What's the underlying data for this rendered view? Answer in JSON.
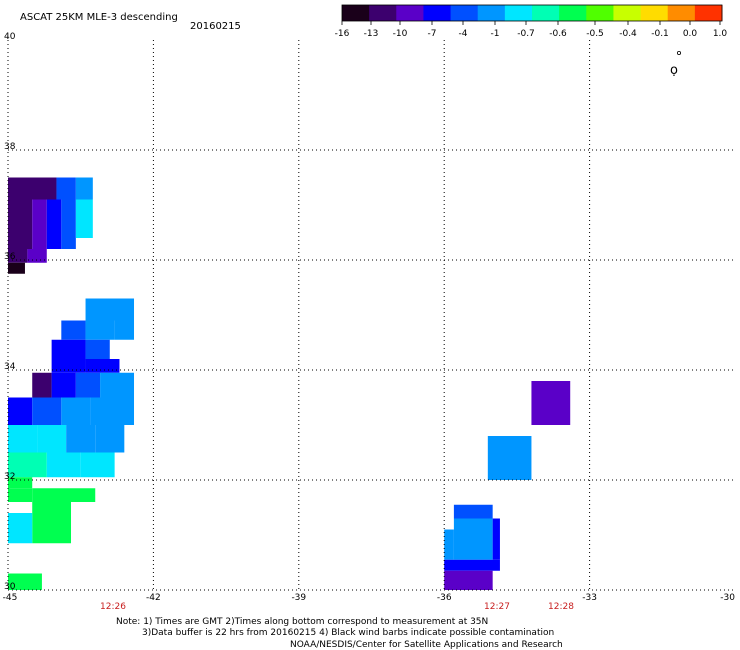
{
  "header": {
    "title": "ASCAT 25KM MLE-3 descending",
    "date": "20160215"
  },
  "colorbar": {
    "colors": [
      "#1a001a",
      "#3c006e",
      "#5a00c8",
      "#0000ff",
      "#0050ff",
      "#0096ff",
      "#00e6ff",
      "#00ffb4",
      "#00ff50",
      "#50ff00",
      "#c8ff00",
      "#ffdc00",
      "#ff8c00",
      "#ff3200"
    ],
    "tick_labels": [
      "-16",
      "-13",
      "-10",
      "-7",
      "-4",
      "-1",
      "-0.7",
      "-0.6",
      "-0.5",
      "-0.4",
      "-0.1",
      "0.0",
      "1.0"
    ]
  },
  "axes": {
    "lon_labels": [
      "-45",
      "-42",
      "-39",
      "-36",
      "-33",
      "-30"
    ],
    "lon_values": [
      -45,
      -42,
      -39,
      -36,
      -33,
      -30
    ],
    "lat_labels": [
      "40",
      "38",
      "36",
      "34",
      "32",
      "30"
    ],
    "lat_values": [
      40,
      38,
      36,
      34,
      32,
      30
    ],
    "lon_range": [
      -45,
      -30
    ],
    "lat_range": [
      30,
      40
    ],
    "grid": "dotted"
  },
  "pass_times": [
    "12:26",
    "12:27",
    "12:28"
  ],
  "wind_barb_symbol": "ọ",
  "notes": {
    "line1": "Note: 1) Times are GMT 2)Times along bottom correspond to measurement at 35N",
    "line2": "3)Data buffer is 22 hrs from 20160215 4) Black wind barbs indicate possible contamination",
    "line3": "NOAA/NESDIS/Center for Satellite Applications and Research"
  },
  "swath_cells": [
    {
      "lon0": -45.0,
      "lon1": -44.35,
      "lat0": 37.1,
      "lat1": 37.5,
      "c": "#3c006e"
    },
    {
      "lon0": -44.35,
      "lon1": -44.0,
      "lat0": 37.1,
      "lat1": 37.5,
      "c": "#3c006e"
    },
    {
      "lon0": -44.0,
      "lon1": -43.6,
      "lat0": 37.1,
      "lat1": 37.5,
      "c": "#0050ff"
    },
    {
      "lon0": -43.6,
      "lon1": -43.25,
      "lat0": 37.1,
      "lat1": 37.5,
      "c": "#0096ff"
    },
    {
      "lon0": -45.0,
      "lon1": -44.5,
      "lat0": 36.8,
      "lat1": 37.1,
      "c": "#3c006e"
    },
    {
      "lon0": -44.5,
      "lon1": -44.2,
      "lat0": 36.8,
      "lat1": 37.1,
      "c": "#5a00c8"
    },
    {
      "lon0": -44.2,
      "lon1": -43.9,
      "lat0": 36.8,
      "lat1": 37.1,
      "c": "#0000ff"
    },
    {
      "lon0": -43.9,
      "lon1": -43.6,
      "lat0": 36.8,
      "lat1": 37.1,
      "c": "#0050ff"
    },
    {
      "lon0": -43.6,
      "lon1": -43.25,
      "lat0": 36.8,
      "lat1": 37.1,
      "c": "#00e6ff"
    },
    {
      "lon0": -45.0,
      "lon1": -44.5,
      "lat0": 36.4,
      "lat1": 36.8,
      "c": "#3c006e"
    },
    {
      "lon0": -44.5,
      "lon1": -44.2,
      "lat0": 36.4,
      "lat1": 36.8,
      "c": "#5a00c8"
    },
    {
      "lon0": -44.2,
      "lon1": -43.9,
      "lat0": 36.4,
      "lat1": 36.8,
      "c": "#0000ff"
    },
    {
      "lon0": -43.9,
      "lon1": -43.6,
      "lat0": 36.4,
      "lat1": 36.8,
      "c": "#0050ff"
    },
    {
      "lon0": -43.6,
      "lon1": -43.25,
      "lat0": 36.4,
      "lat1": 36.8,
      "c": "#00e6ff"
    },
    {
      "lon0": -45.0,
      "lon1": -44.5,
      "lat0": 36.2,
      "lat1": 36.4,
      "c": "#3c006e"
    },
    {
      "lon0": -44.5,
      "lon1": -44.2,
      "lat0": 36.2,
      "lat1": 36.4,
      "c": "#5a00c8"
    },
    {
      "lon0": -44.2,
      "lon1": -43.9,
      "lat0": 36.2,
      "lat1": 36.4,
      "c": "#0000ff"
    },
    {
      "lon0": -43.9,
      "lon1": -43.6,
      "lat0": 36.2,
      "lat1": 36.4,
      "c": "#0050ff"
    },
    {
      "lon0": -45.0,
      "lon1": -44.6,
      "lat0": 35.95,
      "lat1": 36.2,
      "c": "#3c006e"
    },
    {
      "lon0": -44.6,
      "lon1": -44.2,
      "lat0": 35.95,
      "lat1": 36.2,
      "c": "#5a00c8"
    },
    {
      "lon0": -45.0,
      "lon1": -44.65,
      "lat0": 35.75,
      "lat1": 35.95,
      "c": "#1a001a"
    },
    {
      "lon0": -43.4,
      "lon1": -42.4,
      "lat0": 34.9,
      "lat1": 35.3,
      "c": "#0096ff"
    },
    {
      "lon0": -43.9,
      "lon1": -43.4,
      "lat0": 34.55,
      "lat1": 34.9,
      "c": "#0050ff"
    },
    {
      "lon0": -43.4,
      "lon1": -42.8,
      "lat0": 34.55,
      "lat1": 34.9,
      "c": "#0096ff"
    },
    {
      "lon0": -42.8,
      "lon1": -42.4,
      "lat0": 34.55,
      "lat1": 34.9,
      "c": "#0096ff"
    },
    {
      "lon0": -44.1,
      "lon1": -43.4,
      "lat0": 34.2,
      "lat1": 34.55,
      "c": "#0000ff"
    },
    {
      "lon0": -43.4,
      "lon1": -42.9,
      "lat0": 34.2,
      "lat1": 34.55,
      "c": "#0050ff"
    },
    {
      "lon0": -44.1,
      "lon1": -43.4,
      "lat0": 33.95,
      "lat1": 34.2,
      "c": "#0000ff"
    },
    {
      "lon0": -43.4,
      "lon1": -42.7,
      "lat0": 33.95,
      "lat1": 34.2,
      "c": "#0000ff"
    },
    {
      "lon0": -44.5,
      "lon1": -44.1,
      "lat0": 33.5,
      "lat1": 33.95,
      "c": "#3c006e"
    },
    {
      "lon0": -44.1,
      "lon1": -43.6,
      "lat0": 33.5,
      "lat1": 33.95,
      "c": "#0000ff"
    },
    {
      "lon0": -43.6,
      "lon1": -43.1,
      "lat0": 33.5,
      "lat1": 33.95,
      "c": "#0050ff"
    },
    {
      "lon0": -43.1,
      "lon1": -42.4,
      "lat0": 33.5,
      "lat1": 33.95,
      "c": "#0096ff"
    },
    {
      "lon0": -45.0,
      "lon1": -44.5,
      "lat0": 33.0,
      "lat1": 33.5,
      "c": "#0000ff"
    },
    {
      "lon0": -44.5,
      "lon1": -43.9,
      "lat0": 33.0,
      "lat1": 33.5,
      "c": "#0050ff"
    },
    {
      "lon0": -43.9,
      "lon1": -43.3,
      "lat0": 33.0,
      "lat1": 33.5,
      "c": "#0096ff"
    },
    {
      "lon0": -43.3,
      "lon1": -42.4,
      "lat0": 33.0,
      "lat1": 33.5,
      "c": "#0096ff"
    },
    {
      "lon0": -45.0,
      "lon1": -44.4,
      "lat0": 32.5,
      "lat1": 33.0,
      "c": "#00e6ff"
    },
    {
      "lon0": -44.4,
      "lon1": -43.8,
      "lat0": 32.5,
      "lat1": 33.0,
      "c": "#00e6ff"
    },
    {
      "lon0": -43.8,
      "lon1": -43.2,
      "lat0": 32.5,
      "lat1": 33.0,
      "c": "#0096ff"
    },
    {
      "lon0": -43.2,
      "lon1": -42.6,
      "lat0": 32.5,
      "lat1": 33.0,
      "c": "#0096ff"
    },
    {
      "lon0": -45.0,
      "lon1": -44.2,
      "lat0": 32.05,
      "lat1": 32.5,
      "c": "#00ffb4"
    },
    {
      "lon0": -44.2,
      "lon1": -43.5,
      "lat0": 32.05,
      "lat1": 32.5,
      "c": "#00e6ff"
    },
    {
      "lon0": -43.5,
      "lon1": -42.8,
      "lat0": 32.05,
      "lat1": 32.5,
      "c": "#00e6ff"
    },
    {
      "lon0": -45.0,
      "lon1": -44.5,
      "lat0": 31.85,
      "lat1": 32.05,
      "c": "#00ff50"
    },
    {
      "lon0": -44.5,
      "lon1": -43.2,
      "lat0": 31.6,
      "lat1": 31.85,
      "c": "#00ff50"
    },
    {
      "lon0": -45.0,
      "lon1": -44.5,
      "lat0": 31.6,
      "lat1": 31.85,
      "c": "#00ff50"
    },
    {
      "lon0": -44.5,
      "lon1": -43.7,
      "lat0": 30.85,
      "lat1": 31.6,
      "c": "#00ff50"
    },
    {
      "lon0": -45.0,
      "lon1": -44.5,
      "lat0": 30.85,
      "lat1": 31.4,
      "c": "#00e6ff"
    },
    {
      "lon0": -45.0,
      "lon1": -44.3,
      "lat0": 30.0,
      "lat1": 30.3,
      "c": "#00ff50"
    },
    {
      "lon0": -34.2,
      "lon1": -33.4,
      "lat0": 33.0,
      "lat1": 33.8,
      "c": "#5a00c8"
    },
    {
      "lon0": -35.1,
      "lon1": -34.2,
      "lat0": 32.0,
      "lat1": 32.8,
      "c": "#0096ff"
    },
    {
      "lon0": -35.8,
      "lon1": -35.0,
      "lat0": 31.3,
      "lat1": 31.55,
      "c": "#0050ff"
    },
    {
      "lon0": -35.8,
      "lon1": -35.0,
      "lat0": 30.55,
      "lat1": 31.3,
      "c": "#0096ff"
    },
    {
      "lon0": -35.0,
      "lon1": -34.85,
      "lat0": 30.55,
      "lat1": 31.3,
      "c": "#0000ff"
    },
    {
      "lon0": -36.0,
      "lon1": -35.8,
      "lat0": 30.55,
      "lat1": 31.1,
      "c": "#0096ff"
    },
    {
      "lon0": -36.0,
      "lon1": -34.85,
      "lat0": 30.35,
      "lat1": 30.55,
      "c": "#0000ff"
    },
    {
      "lon0": -36.0,
      "lon1": -35.0,
      "lat0": 30.0,
      "lat1": 30.35,
      "c": "#5a00c8"
    }
  ]
}
